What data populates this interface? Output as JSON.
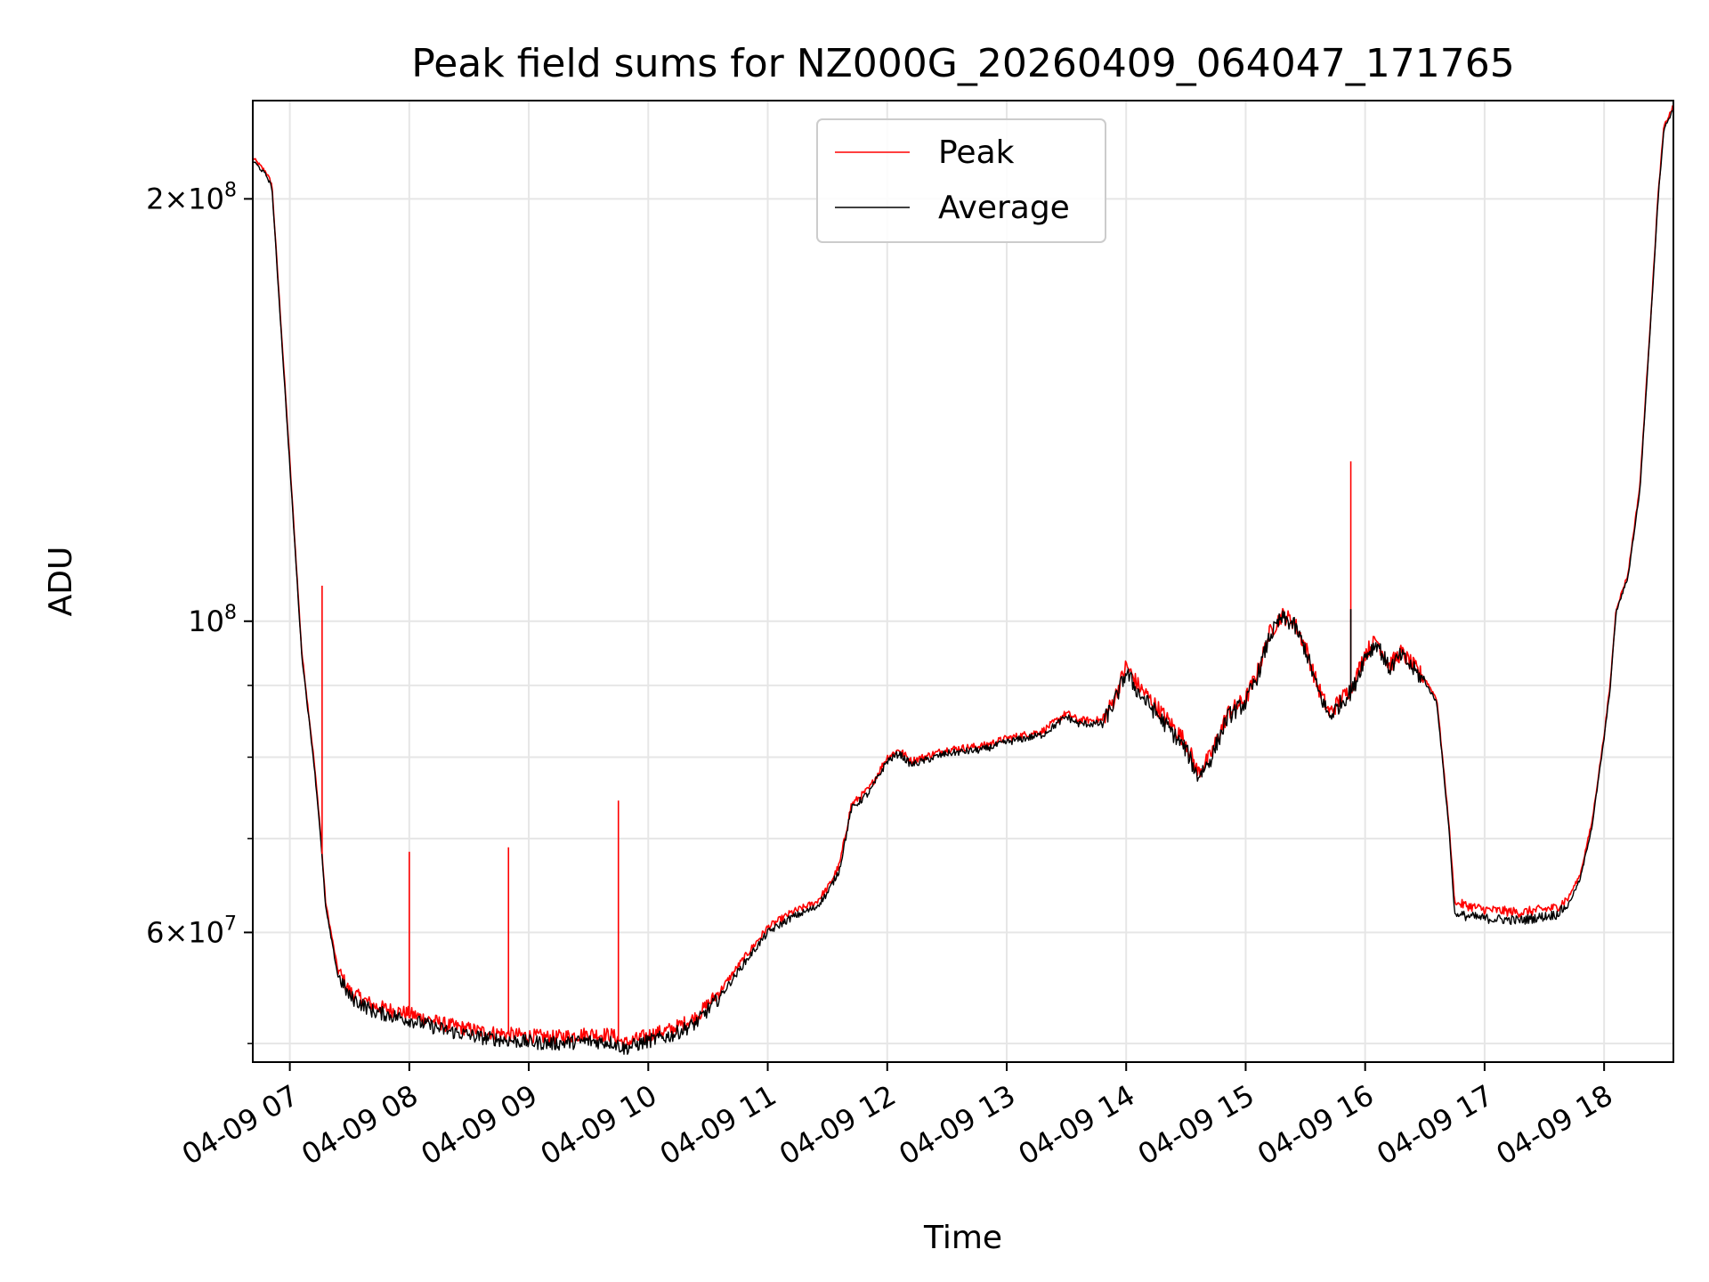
{
  "chart_data": {
    "type": "line",
    "title": "Peak field sums for NZ000G_20260409_064047_171765",
    "xlabel": "Time",
    "ylabel": "ADU",
    "y_scale": "log",
    "ylim": [
      48500000,
      235000000
    ],
    "xlim": [
      6.69,
      18.58
    ],
    "grid": true,
    "legend_position": "top-center",
    "x_ticks": [
      {
        "value": 7,
        "label": "04-09 07"
      },
      {
        "value": 8,
        "label": "04-09 08"
      },
      {
        "value": 9,
        "label": "04-09 09"
      },
      {
        "value": 10,
        "label": "04-09 10"
      },
      {
        "value": 11,
        "label": "04-09 11"
      },
      {
        "value": 12,
        "label": "04-09 12"
      },
      {
        "value": 13,
        "label": "04-09 13"
      },
      {
        "value": 14,
        "label": "04-09 14"
      },
      {
        "value": 15,
        "label": "04-09 15"
      },
      {
        "value": 16,
        "label": "04-09 16"
      },
      {
        "value": 17,
        "label": "04-09 17"
      },
      {
        "value": 18,
        "label": "04-09 18"
      }
    ],
    "y_major_ticks": [
      {
        "value": 60000000,
        "base": "6×10",
        "exp": "7"
      },
      {
        "value": 100000000,
        "base": "10",
        "exp": "8"
      },
      {
        "value": 200000000,
        "base": "2×10",
        "exp": "8"
      }
    ],
    "y_minor_ticks": [
      50000000,
      70000000,
      80000000,
      90000000
    ],
    "series": [
      {
        "name": "Peak",
        "color": "#ff0000",
        "points": [
          [
            6.69,
            214000000
          ],
          [
            6.8,
            209000000
          ],
          [
            6.85,
            205000000
          ],
          [
            7.0,
            130000000
          ],
          [
            7.1,
            95000000
          ],
          [
            7.2,
            80000000
          ],
          [
            7.25,
            72000000
          ],
          [
            7.3,
            63000000
          ],
          [
            7.4,
            56500000
          ],
          [
            7.5,
            54500000
          ],
          [
            7.7,
            53200000
          ],
          [
            8.0,
            52500000
          ],
          [
            8.3,
            51600000
          ],
          [
            8.6,
            51000000
          ],
          [
            8.9,
            50700000
          ],
          [
            9.2,
            50500000
          ],
          [
            9.5,
            50800000
          ],
          [
            9.7,
            50700000
          ],
          [
            9.8,
            50000000
          ],
          [
            10.0,
            50700000
          ],
          [
            10.2,
            51200000
          ],
          [
            10.4,
            52200000
          ],
          [
            10.6,
            54500000
          ],
          [
            10.8,
            57500000
          ],
          [
            11.0,
            60500000
          ],
          [
            11.2,
            62000000
          ],
          [
            11.4,
            63000000
          ],
          [
            11.5,
            64500000
          ],
          [
            11.6,
            67000000
          ],
          [
            11.7,
            74000000
          ],
          [
            11.85,
            76000000
          ],
          [
            12.0,
            80000000
          ],
          [
            12.1,
            81000000
          ],
          [
            12.2,
            79500000
          ],
          [
            12.5,
            81000000
          ],
          [
            12.8,
            81500000
          ],
          [
            13.0,
            82500000
          ],
          [
            13.3,
            83500000
          ],
          [
            13.5,
            86000000
          ],
          [
            13.6,
            85000000
          ],
          [
            13.8,
            85000000
          ],
          [
            13.9,
            88000000
          ],
          [
            14.0,
            93000000
          ],
          [
            14.1,
            90000000
          ],
          [
            14.2,
            88000000
          ],
          [
            14.4,
            84000000
          ],
          [
            14.5,
            82000000
          ],
          [
            14.6,
            78000000
          ],
          [
            14.7,
            80000000
          ],
          [
            14.85,
            86000000
          ],
          [
            15.0,
            88000000
          ],
          [
            15.1,
            92000000
          ],
          [
            15.2,
            98000000
          ],
          [
            15.3,
            101000000
          ],
          [
            15.4,
            100000000
          ],
          [
            15.5,
            96000000
          ],
          [
            15.6,
            90000000
          ],
          [
            15.7,
            86000000
          ],
          [
            15.8,
            88000000
          ],
          [
            15.9,
            90000000
          ],
          [
            16.0,
            95000000
          ],
          [
            16.1,
            97000000
          ],
          [
            16.2,
            93000000
          ],
          [
            16.3,
            95000000
          ],
          [
            16.4,
            93000000
          ],
          [
            16.5,
            91000000
          ],
          [
            16.6,
            88000000
          ],
          [
            16.7,
            72000000
          ],
          [
            16.75,
            63000000
          ],
          [
            17.0,
            62300000
          ],
          [
            17.3,
            62000000
          ],
          [
            17.6,
            62500000
          ],
          [
            17.7,
            63500000
          ],
          [
            17.8,
            66000000
          ],
          [
            17.9,
            72000000
          ],
          [
            18.0,
            83000000
          ],
          [
            18.05,
            90000000
          ],
          [
            18.1,
            102000000
          ],
          [
            18.2,
            108000000
          ],
          [
            18.3,
            125000000
          ],
          [
            18.4,
            170000000
          ],
          [
            18.45,
            200000000
          ],
          [
            18.5,
            225000000
          ],
          [
            18.58,
            233000000
          ]
        ]
      },
      {
        "name": "Average",
        "color": "#000000",
        "points": [
          [
            6.69,
            213000000
          ],
          [
            6.8,
            208000000
          ],
          [
            6.85,
            204000000
          ],
          [
            7.0,
            129000000
          ],
          [
            7.1,
            94500000
          ],
          [
            7.2,
            79500000
          ],
          [
            7.25,
            71500000
          ],
          [
            7.3,
            62500000
          ],
          [
            7.4,
            56000000
          ],
          [
            7.5,
            54000000
          ],
          [
            7.7,
            52700000
          ],
          [
            8.0,
            52000000
          ],
          [
            8.3,
            51100000
          ],
          [
            8.6,
            50500000
          ],
          [
            8.9,
            50200000
          ],
          [
            9.2,
            50000000
          ],
          [
            9.5,
            50200000
          ],
          [
            9.7,
            50100000
          ],
          [
            9.8,
            49600000
          ],
          [
            10.0,
            50200000
          ],
          [
            10.2,
            50700000
          ],
          [
            10.4,
            51700000
          ],
          [
            10.6,
            54000000
          ],
          [
            10.8,
            57000000
          ],
          [
            11.0,
            60000000
          ],
          [
            11.2,
            61500000
          ],
          [
            11.4,
            62500000
          ],
          [
            11.5,
            64000000
          ],
          [
            11.6,
            66500000
          ],
          [
            11.7,
            73500000
          ],
          [
            11.85,
            75500000
          ],
          [
            12.0,
            79500000
          ],
          [
            12.1,
            80500000
          ],
          [
            12.2,
            79000000
          ],
          [
            12.5,
            80500000
          ],
          [
            12.8,
            81000000
          ],
          [
            13.0,
            82000000
          ],
          [
            13.3,
            83000000
          ],
          [
            13.5,
            85500000
          ],
          [
            13.6,
            84500000
          ],
          [
            13.8,
            84500000
          ],
          [
            13.9,
            87500000
          ],
          [
            14.0,
            92000000
          ],
          [
            14.1,
            89000000
          ],
          [
            14.2,
            87000000
          ],
          [
            14.4,
            83000000
          ],
          [
            14.5,
            81000000
          ],
          [
            14.6,
            77500000
          ],
          [
            14.7,
            79500000
          ],
          [
            14.85,
            85500000
          ],
          [
            15.0,
            87500000
          ],
          [
            15.1,
            91500000
          ],
          [
            15.2,
            97500000
          ],
          [
            15.3,
            100500000
          ],
          [
            15.4,
            99500000
          ],
          [
            15.5,
            95500000
          ],
          [
            15.6,
            89500000
          ],
          [
            15.7,
            85500000
          ],
          [
            15.8,
            87500000
          ],
          [
            15.9,
            89500000
          ],
          [
            16.0,
            94500000
          ],
          [
            16.1,
            96500000
          ],
          [
            16.2,
            92500000
          ],
          [
            16.3,
            94500000
          ],
          [
            16.4,
            92500000
          ],
          [
            16.5,
            90500000
          ],
          [
            16.6,
            87500000
          ],
          [
            16.7,
            71500000
          ],
          [
            16.75,
            61800000
          ],
          [
            17.0,
            61400000
          ],
          [
            17.3,
            61200000
          ],
          [
            17.6,
            61800000
          ],
          [
            17.7,
            62800000
          ],
          [
            17.8,
            65500000
          ],
          [
            17.9,
            71500000
          ],
          [
            18.0,
            82500000
          ],
          [
            18.05,
            89500000
          ],
          [
            18.1,
            101500000
          ],
          [
            18.2,
            107500000
          ],
          [
            18.3,
            124000000
          ],
          [
            18.4,
            169000000
          ],
          [
            18.45,
            199000000
          ],
          [
            18.5,
            224000000
          ],
          [
            18.58,
            232000000
          ]
        ]
      }
    ],
    "spikes": [
      {
        "series": "Peak",
        "x": 7.27,
        "y": 106000000
      },
      {
        "series": "Peak",
        "x": 8.0,
        "y": 68500000
      },
      {
        "series": "Peak",
        "x": 8.83,
        "y": 69000000
      },
      {
        "series": "Peak",
        "x": 9.75,
        "y": 74500000
      },
      {
        "series": "Peak",
        "x": 15.88,
        "y": 130000000
      },
      {
        "series": "Average",
        "x": 15.88,
        "y": 102000000
      }
    ]
  }
}
